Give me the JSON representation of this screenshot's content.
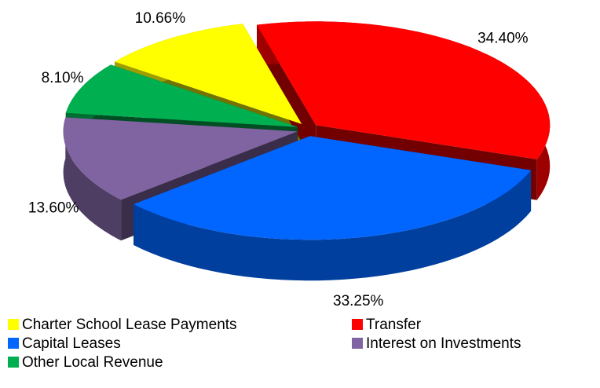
{
  "chart_data": {
    "type": "pie",
    "categories": [
      "Charter School Lease Payments",
      "Transfer",
      "Capital Leases",
      "Interest on Investments",
      "Other Local Revenue"
    ],
    "values": [
      10.66,
      34.4,
      33.25,
      13.6,
      8.1
    ],
    "value_labels": [
      "10.66%",
      "34.40%",
      "33.25%",
      "13.60%",
      "8.10%"
    ],
    "colors": [
      "#ffff00",
      "#ff0000",
      "#0066ff",
      "#8064a2",
      "#00b050"
    ]
  }
}
